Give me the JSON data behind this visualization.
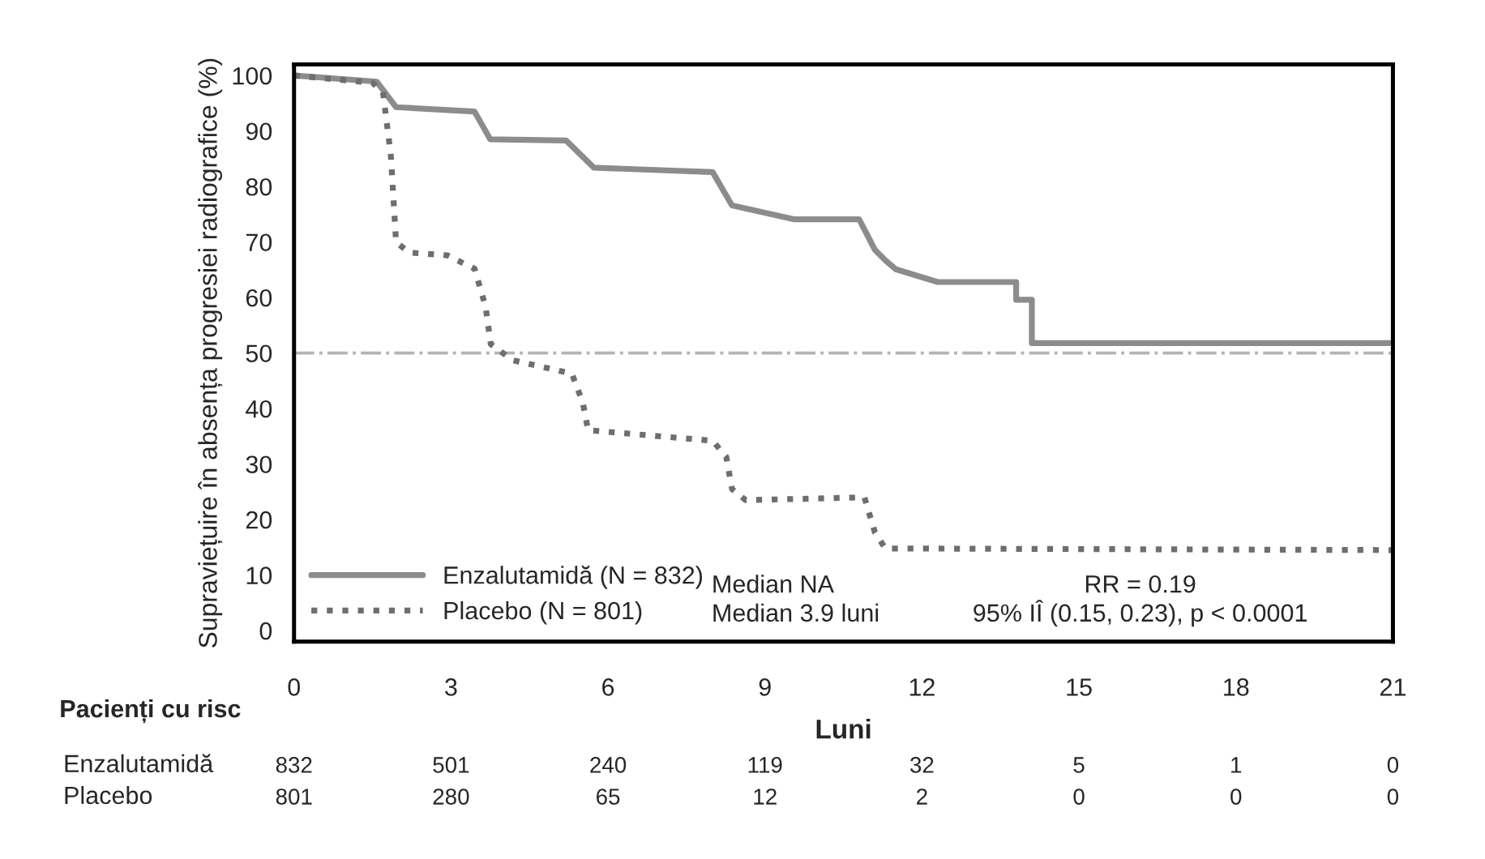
{
  "chart_data": {
    "type": "line",
    "xlabel": "Luni",
    "ylabel": "Supraviețuire în absența progresiei radiografice (%)",
    "series": [
      {
        "name": "Enzalutamidă (N = 832)",
        "color": "#8c8c8c",
        "line_style": "solid",
        "x": [
          0,
          1.58,
          1.95,
          3.45,
          3.75,
          5.2,
          5.73,
          8.0,
          8.37,
          9.55,
          10.8,
          11.1,
          11.3,
          11.5,
          12.3,
          13.8,
          13.8,
          14.1,
          14.1,
          21
        ],
        "values": [
          100,
          98.9,
          94.3,
          93.5,
          88.5,
          88.3,
          83.4,
          82.6,
          76.6,
          74.1,
          74.1,
          68.6,
          66.7,
          65.1,
          62.8,
          62.8,
          59.6,
          59.6,
          51.8,
          51.8
        ]
      },
      {
        "name": "Placebo (N = 801)",
        "color": "#6e6e6e",
        "line_style": "dotted",
        "x": [
          0,
          1.5,
          1.7,
          1.85,
          1.95,
          2.2,
          2.93,
          3.45,
          3.66,
          3.76,
          4.18,
          5.31,
          5.52,
          5.62,
          8.0,
          8.26,
          8.37,
          8.63,
          10.9,
          11.1,
          11.3,
          21
        ],
        "values": [
          100,
          98.7,
          97,
          85.6,
          70,
          68.1,
          67.6,
          65.2,
          58.4,
          51.6,
          48.7,
          46.3,
          41,
          36.1,
          34.2,
          31.3,
          25.5,
          23.5,
          24.0,
          17.7,
          14.8,
          14.5
        ]
      }
    ],
    "xlim": [
      0,
      21
    ],
    "xticks": [
      0,
      3,
      6,
      9,
      12,
      15,
      18,
      21
    ],
    "ylim": [
      -2,
      102
    ],
    "yticks": [
      0,
      10,
      20,
      30,
      40,
      50,
      60,
      70,
      80,
      90,
      100
    ],
    "ref_lines": [
      {
        "axis": "y",
        "value": 50,
        "color": "#b4b4b4",
        "line_style": "dashdot"
      }
    ],
    "legend": "bottom left",
    "grid": false,
    "annotations": [
      "Median NA",
      "Median 3.9 luni",
      "RR = 0.19",
      "95% IÎ (0.15, 0.23), p < 0.0001",
      "Pacienți cu risc",
      "Enzalutamidă",
      "Placebo",
      "832",
      "501",
      "240",
      "119",
      "32",
      "5",
      "1",
      "0",
      "801",
      "280",
      "65",
      "12",
      "2",
      "0",
      "0",
      "0"
    ]
  }
}
